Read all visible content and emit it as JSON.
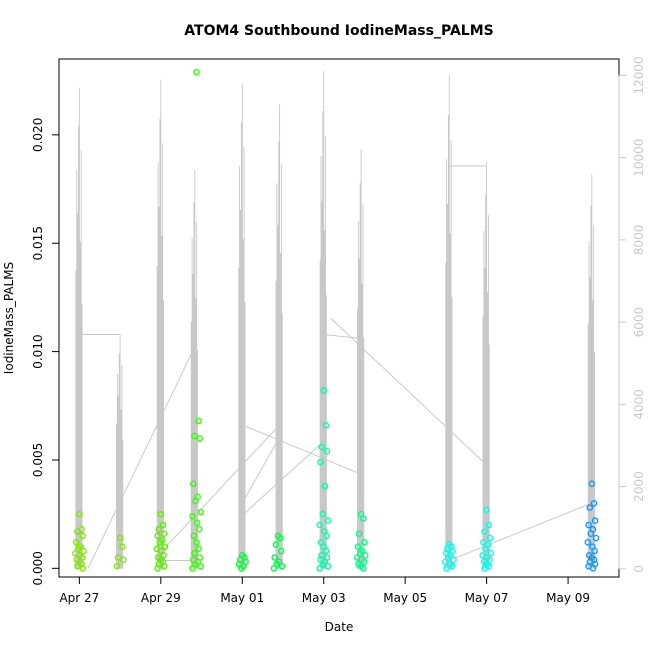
{
  "chart_data": {
    "type": "scatter",
    "title": "ATOM4 Southbound IodineMass_PALMS",
    "xlabel": "Date",
    "ylabel": "IodineMass_PALMS",
    "x_axis": {
      "type": "date",
      "range": [
        "2017-04-26T12:00",
        "2017-05-10T06:00"
      ],
      "ticks": [
        {
          "date": "2017-04-27",
          "label": "Apr 27"
        },
        {
          "date": "2017-04-29",
          "label": "Apr 29"
        },
        {
          "date": "2017-05-01",
          "label": "May 01"
        },
        {
          "date": "2017-05-03",
          "label": "May 03"
        },
        {
          "date": "2017-05-05",
          "label": "May 05"
        },
        {
          "date": "2017-05-07",
          "label": "May 07"
        },
        {
          "date": "2017-05-09",
          "label": "May 09"
        }
      ]
    },
    "y_left": {
      "range": [
        -0.0004,
        0.0235
      ],
      "ticks": [
        {
          "value": 0.0,
          "label": "0.000"
        },
        {
          "value": 0.005,
          "label": "0.005"
        },
        {
          "value": 0.01,
          "label": "0.010"
        },
        {
          "value": 0.015,
          "label": "0.015"
        },
        {
          "value": 0.02,
          "label": "0.020"
        }
      ]
    },
    "y_right": {
      "range": [
        -200,
        12400
      ],
      "color": "#c8c8c8",
      "ticks": [
        {
          "value": 0,
          "label": "0"
        },
        {
          "value": 2000,
          "label": "2000"
        },
        {
          "value": 4000,
          "label": "4000"
        },
        {
          "value": 6000,
          "label": "6000"
        },
        {
          "value": 8000,
          "label": "8000"
        },
        {
          "value": 10000,
          "label": "10000"
        },
        {
          "value": 12000,
          "label": "12000"
        }
      ]
    },
    "grid": false,
    "legend": "none",
    "series": [
      {
        "axis": "left",
        "kind": "points",
        "marker": "open-circle",
        "colors": [
          "#7fe600",
          "#7fe600",
          "#4dee00",
          "#33ff00",
          "#00ff33",
          "#00ff55",
          "#00ff88",
          "#00ffaa",
          "#00ffff",
          "#00f0ff",
          "#0099ff"
        ],
        "groups": [
          {
            "date": "2017-04-27T00:00",
            "color": "#80e800",
            "values": [
              0.0025,
              0.0018,
              0.0017,
              0.0015,
              0.0012,
              0.001,
              0.0009,
              0.0008,
              0.0007,
              0.0006,
              0.0005,
              0.0004,
              0.0003,
              0.0002,
              0.0001,
              0.0
            ]
          },
          {
            "date": "2017-04-28T00:00",
            "color": "#80e800",
            "values": [
              0.0014,
              0.001,
              0.0005,
              0.0004,
              0.0001
            ]
          },
          {
            "date": "2017-04-29T00:00",
            "color": "#5cf000",
            "values": [
              0.0025,
              0.002,
              0.0018,
              0.0016,
              0.0015,
              0.0013,
              0.0012,
              0.001,
              0.0009,
              0.0008,
              0.0006,
              0.0005,
              0.0004,
              0.0003,
              0.0002,
              0.0001,
              0.0
            ]
          },
          {
            "date": "2017-04-29T21:00",
            "color": "#33ff00",
            "values": [
              0.0229,
              0.0068,
              0.0061,
              0.006,
              0.0039,
              0.0033,
              0.0031,
              0.0026,
              0.0024,
              0.0021,
              0.0018,
              0.0015,
              0.0012,
              0.0009,
              0.0007,
              0.0005,
              0.0004,
              0.0003,
              0.0002,
              0.0001,
              0.0
            ]
          },
          {
            "date": "2017-05-01T00:00",
            "color": "#00ff33",
            "values": [
              0.0006,
              0.0005,
              0.0004,
              0.0003,
              0.0002,
              0.0001,
              0.0
            ]
          },
          {
            "date": "2017-05-01T21:00",
            "color": "#00ff44",
            "values": [
              0.0015,
              0.0014,
              0.0011,
              0.0008,
              0.0005,
              0.0003,
              0.0002,
              0.0001,
              0.0
            ]
          },
          {
            "date": "2017-05-03T00:00",
            "color": "#00ffaa",
            "values": [
              0.0082,
              0.0066,
              0.0056,
              0.0054,
              0.0049,
              0.0038,
              0.0025,
              0.0022,
              0.002,
              0.0017,
              0.0015,
              0.0012,
              0.001,
              0.0008,
              0.0006,
              0.0005,
              0.0004,
              0.0003,
              0.0002,
              0.0001,
              0.0
            ]
          },
          {
            "date": "2017-05-03T22:00",
            "color": "#00ff88",
            "values": [
              0.0025,
              0.0023,
              0.0016,
              0.0012,
              0.001,
              0.0008,
              0.0007,
              0.0006,
              0.0005,
              0.0004,
              0.0003,
              0.0002,
              0.0001,
              0.0
            ]
          },
          {
            "date": "2017-05-06T02:00",
            "color": "#00ffee",
            "values": [
              0.0011,
              0.001,
              0.0009,
              0.0008,
              0.0007,
              0.0006,
              0.0005,
              0.0004,
              0.0003,
              0.0002,
              0.0001,
              0.0
            ]
          },
          {
            "date": "2017-05-07T00:00",
            "color": "#00ffee",
            "values": [
              0.0027,
              0.002,
              0.0017,
              0.0014,
              0.0012,
              0.0011,
              0.0009,
              0.0007,
              0.0006,
              0.0005,
              0.0004,
              0.0003,
              0.0002,
              0.0001,
              0.0
            ]
          },
          {
            "date": "2017-05-09T14:00",
            "color": "#1199ff",
            "values": [
              0.0039,
              0.003,
              0.0028,
              0.0022,
              0.002,
              0.0018,
              0.0016,
              0.0014,
              0.0012,
              0.001,
              0.0008,
              0.0006,
              0.0005,
              0.0004,
              0.0003,
              0.0002,
              0.0001,
              0.0
            ]
          }
        ]
      },
      {
        "axis": "right",
        "kind": "line",
        "color": "#c8c8c8",
        "segments": [
          {
            "date": "2017-04-27T00:00",
            "min": 0,
            "max": 11700
          },
          {
            "date": "2017-04-28T00:00",
            "min": 0,
            "max": 5700
          },
          {
            "date": "2017-04-29T00:00",
            "min": 0,
            "max": 11900
          },
          {
            "date": "2017-04-29T20:00",
            "min": 0,
            "max": 9700
          },
          {
            "date": "2017-05-01T00:00",
            "min": 0,
            "max": 11800
          },
          {
            "date": "2017-05-01T22:00",
            "min": 0,
            "max": 11300
          },
          {
            "date": "2017-05-03T00:00",
            "min": 0,
            "max": 12100
          },
          {
            "date": "2017-05-03T22:00",
            "min": 0,
            "max": 10200
          },
          {
            "date": "2017-05-06T02:00",
            "min": 0,
            "max": 12000
          },
          {
            "date": "2017-05-07T00:00",
            "min": 0,
            "max": 9900
          },
          {
            "date": "2017-05-09T14:00",
            "min": 0,
            "max": 9600
          }
        ],
        "connectors": [
          [
            {
              "date": "2017-04-27T00:00",
              "value": 5700
            },
            {
              "date": "2017-04-28T00:00",
              "value": 5700
            }
          ],
          [
            {
              "date": "2017-04-27T05:00",
              "value": 0
            },
            {
              "date": "2017-04-29T20:00",
              "value": 5400
            }
          ],
          [
            {
              "date": "2017-04-29T00:00",
              "value": 200
            },
            {
              "date": "2017-04-29T20:00",
              "value": 200
            }
          ],
          [
            {
              "date": "2017-04-29T00:00",
              "value": 400
            },
            {
              "date": "2017-05-01T22:00",
              "value": 3500
            }
          ],
          [
            {
              "date": "2017-05-01T00:00",
              "value": 1600
            },
            {
              "date": "2017-05-01T22:00",
              "value": 3200
            }
          ],
          [
            {
              "date": "2017-05-01T00:00",
              "value": 3500
            },
            {
              "date": "2017-05-03T22:00",
              "value": 2300
            }
          ],
          [
            {
              "date": "2017-05-01T00:00",
              "value": 1300
            },
            {
              "date": "2017-05-03T00:00",
              "value": 3100
            }
          ],
          [
            {
              "date": "2017-05-03T00:00",
              "value": 5700
            },
            {
              "date": "2017-05-03T22:00",
              "value": 5600
            }
          ],
          [
            {
              "date": "2017-05-03T04:00",
              "value": 6100
            },
            {
              "date": "2017-05-06T22:00",
              "value": 2600
            }
          ],
          [
            {
              "date": "2017-05-06T02:00",
              "value": 9800
            },
            {
              "date": "2017-05-07T00:00",
              "value": 9800
            }
          ],
          [
            {
              "date": "2017-05-06T02:00",
              "value": 200
            },
            {
              "date": "2017-05-09T14:00",
              "value": 1600
            }
          ]
        ]
      }
    ]
  }
}
